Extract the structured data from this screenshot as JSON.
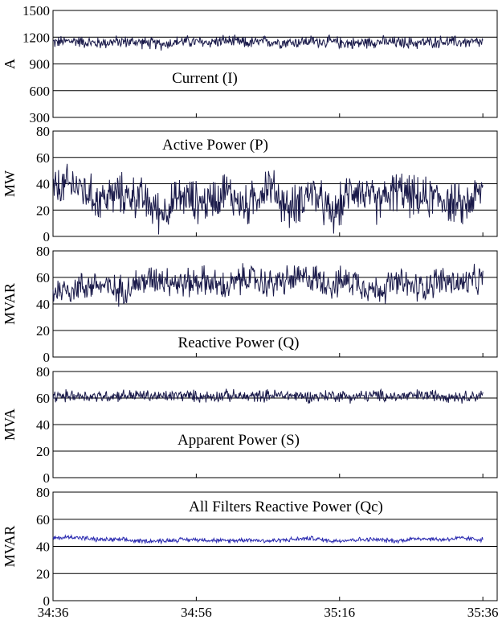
{
  "chart_data": [
    {
      "type": "line",
      "title": "Current (I)",
      "ylabel": "A",
      "ylim": [
        300,
        1500
      ],
      "yticks": [
        "300",
        "600",
        "900",
        "1200",
        "1500"
      ],
      "xlim": [
        "34:36",
        "35:38"
      ],
      "grid": "horizontal",
      "line_color": "#1a1a4a",
      "series": [
        {
          "x": [
            "34:36",
            "34:39",
            "34:42",
            "34:45",
            "34:48",
            "34:51",
            "34:54",
            "34:57",
            "35:00",
            "35:03",
            "35:06",
            "35:09",
            "35:12",
            "35:15",
            "35:18",
            "35:21",
            "35:24",
            "35:27",
            "35:30",
            "35:33",
            "35:36"
          ],
          "values": [
            1140,
            1160,
            1130,
            1150,
            1145,
            1120,
            1155,
            1140,
            1160,
            1135,
            1150,
            1140,
            1155,
            1145,
            1130,
            1150,
            1140,
            1135,
            1150,
            1145,
            1140
          ]
        }
      ]
    },
    {
      "type": "line",
      "title": "Active Power (P)",
      "ylabel": "MW",
      "ylim": [
        0,
        80
      ],
      "yticks": [
        "0",
        "20",
        "40",
        "60",
        "80"
      ],
      "xlim": [
        "34:36",
        "35:38"
      ],
      "grid": "horizontal",
      "line_color": "#1a1a4a",
      "series": [
        {
          "x": [
            "34:36",
            "34:39",
            "34:42",
            "34:45",
            "34:48",
            "34:51",
            "34:54",
            "34:57",
            "35:00",
            "35:03",
            "35:06",
            "35:09",
            "35:12",
            "35:15",
            "35:18",
            "35:21",
            "35:24",
            "35:27",
            "35:30",
            "35:33",
            "35:36"
          ],
          "values": [
            35,
            40,
            28,
            32,
            30,
            18,
            30,
            25,
            35,
            22,
            40,
            20,
            35,
            15,
            38,
            25,
            35,
            28,
            30,
            22,
            35
          ]
        }
      ]
    },
    {
      "type": "line",
      "title": "Reactive Power (Q)",
      "ylabel": "MVAR",
      "ylim": [
        0,
        80
      ],
      "yticks": [
        "0",
        "20",
        "40",
        "60",
        "80"
      ],
      "xlim": [
        "34:36",
        "35:38"
      ],
      "grid": "horizontal",
      "line_color": "#1a1a4a",
      "series": [
        {
          "x": [
            "34:36",
            "34:39",
            "34:42",
            "34:45",
            "34:48",
            "34:51",
            "34:54",
            "34:57",
            "35:00",
            "35:03",
            "35:06",
            "35:09",
            "35:12",
            "35:15",
            "35:18",
            "35:21",
            "35:24",
            "35:27",
            "35:30",
            "35:33",
            "35:36"
          ],
          "values": [
            50,
            52,
            55,
            50,
            56,
            60,
            55,
            58,
            52,
            60,
            55,
            58,
            60,
            55,
            58,
            50,
            56,
            52,
            58,
            55,
            58
          ]
        }
      ]
    },
    {
      "type": "line",
      "title": "Apparent Power (S)",
      "ylabel": "MVA",
      "ylim": [
        0,
        80
      ],
      "yticks": [
        "0",
        "20",
        "40",
        "60",
        "80"
      ],
      "xlim": [
        "34:36",
        "35:38"
      ],
      "grid": "horizontal",
      "line_color": "#1a1a4a",
      "series": [
        {
          "x": [
            "34:36",
            "34:39",
            "34:42",
            "34:45",
            "34:48",
            "34:51",
            "34:54",
            "34:57",
            "35:00",
            "35:03",
            "35:06",
            "35:09",
            "35:12",
            "35:15",
            "35:18",
            "35:21",
            "35:24",
            "35:27",
            "35:30",
            "35:33",
            "35:36"
          ],
          "values": [
            61,
            62,
            61,
            62,
            62,
            61,
            62,
            61,
            62,
            61,
            62,
            62,
            61,
            62,
            61,
            62,
            61,
            62,
            62,
            61,
            62
          ]
        }
      ]
    },
    {
      "type": "line",
      "title": "All Filters Reactive Power (Qc)",
      "ylabel": "MVAR",
      "ylim": [
        0,
        80
      ],
      "yticks": [
        "0",
        "20",
        "40",
        "60",
        "80"
      ],
      "xlim": [
        "34:36",
        "35:38"
      ],
      "xticks": [
        "34:36",
        "34:56",
        "35:16",
        "35:36"
      ],
      "grid": "horizontal",
      "line_color": "#2a2ab0",
      "series": [
        {
          "x": [
            "34:36",
            "34:39",
            "34:42",
            "34:45",
            "34:48",
            "34:51",
            "34:54",
            "34:57",
            "35:00",
            "35:03",
            "35:06",
            "35:09",
            "35:12",
            "35:15",
            "35:18",
            "35:21",
            "35:24",
            "35:27",
            "35:30",
            "35:33",
            "35:36"
          ],
          "values": [
            46,
            47,
            45,
            45,
            44,
            44,
            45,
            45,
            44,
            45,
            44,
            45,
            46,
            44,
            45,
            45,
            44,
            46,
            45,
            46,
            45
          ]
        }
      ]
    }
  ]
}
